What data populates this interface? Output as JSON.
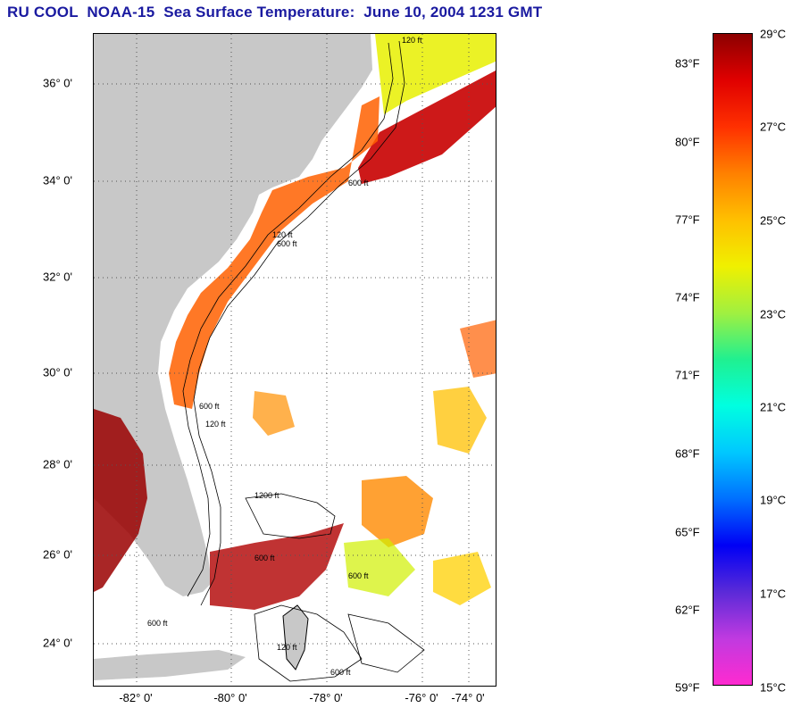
{
  "title": {
    "text": "RU COOL  NOAA-15  Sea Surface Temperature:  June 10, 2004 1231 GMT",
    "color": "#1a1aa0"
  },
  "map": {
    "land_color": "#c8c8c8",
    "no_data_color": "#ffffff",
    "lat_labels": [
      "36° 0'",
      "34° 0'",
      "32° 0'",
      "30° 0'",
      "28° 0'",
      "26° 0'",
      "24° 0'"
    ],
    "lon_labels": [
      "-82° 0'",
      "-80° 0'",
      "-78° 0'",
      "-76° 0'",
      "-74° 0'"
    ],
    "isobath_labels": [
      "120 ft",
      "600 ft",
      "120 ft",
      "600 ft",
      "600 ft",
      "120 ft",
      "1200 ft",
      "600 ft",
      "600 ft",
      "120 ft",
      "600 ft",
      "600 ft"
    ]
  },
  "colorbar": {
    "fahrenheit_labels": [
      "83°F",
      "80°F",
      "77°F",
      "74°F",
      "71°F",
      "68°F",
      "65°F",
      "62°F",
      "59°F"
    ],
    "celsius_labels": [
      "29°C",
      "27°C",
      "25°C",
      "23°C",
      "21°C",
      "19°C",
      "17°C",
      "15°C"
    ],
    "range_c": [
      15,
      29
    ],
    "colors": [
      "#ff2ad0",
      "#c03ae0",
      "#5a2ad8",
      "#0000f5",
      "#0070ff",
      "#00c8ff",
      "#00ffe0",
      "#20f090",
      "#a0f040",
      "#f0f000",
      "#ffc000",
      "#ff8000",
      "#ff3000",
      "#e00000",
      "#8c0000"
    ]
  }
}
